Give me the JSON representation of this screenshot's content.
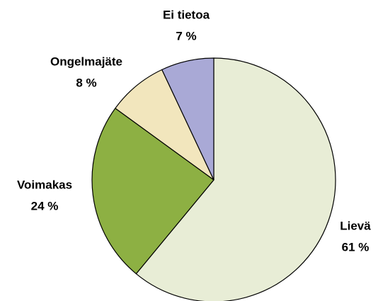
{
  "chart_data": {
    "type": "pie",
    "categories": [
      "Lievä",
      "Voimakas",
      "Ongelmajäte",
      "Ei tietoa"
    ],
    "values": [
      61,
      24,
      8,
      7
    ],
    "value_labels": [
      "61 %",
      "24 %",
      "8 %",
      "7 %"
    ],
    "colors": [
      "#e8edd6",
      "#8db043",
      "#f2e6bd",
      "#a9a9d6"
    ]
  }
}
